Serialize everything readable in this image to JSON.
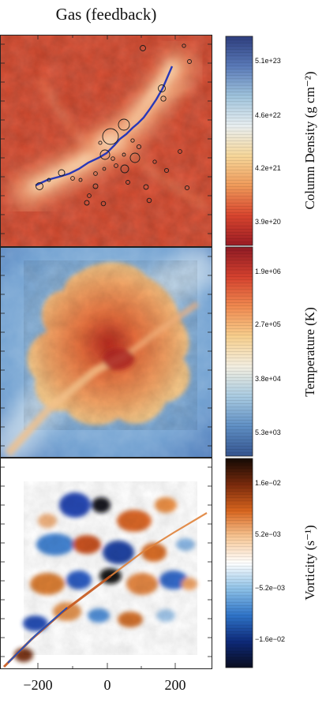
{
  "figure": {
    "title": "Gas (feedback)",
    "x_tick_labels": [
      "−200",
      "0",
      "200"
    ]
  },
  "panels": [
    {
      "quantity": "column-density",
      "colorbar_label": "Column Density (g cm⁻²)",
      "colorbar_ticks": [
        "5.1e+23",
        "4.6e+22",
        "4.2e+21",
        "3.9e+20"
      ],
      "colormap": [
        "#2e3e7e",
        "#5a7ab8",
        "#9fc3dc",
        "#e8eef0",
        "#f6d79a",
        "#ef9a5a",
        "#d8452e",
        "#9b1c24"
      ]
    },
    {
      "quantity": "temperature",
      "colorbar_label": "Temperature (K)",
      "colorbar_ticks": [
        "1.9e+06",
        "2.7e+05",
        "3.8e+04",
        "5.3e+03"
      ],
      "colormap": [
        "#8e1a24",
        "#d4412e",
        "#f08a50",
        "#f7cf8e",
        "#f3eee0",
        "#a9cbe1",
        "#5f8fc4",
        "#34548f"
      ]
    },
    {
      "quantity": "vorticity",
      "colorbar_label": "Vorticity (s⁻¹)",
      "colorbar_ticks": [
        "1.6e−02",
        "5.2e−03",
        "−5.2e−03",
        "−1.6e−02"
      ],
      "colormap": [
        "#140a05",
        "#7a2a0c",
        "#d8651e",
        "#f7c694",
        "#ffffff",
        "#8cc0e6",
        "#2f74c8",
        "#0e2a7a",
        "#0a0d1f"
      ]
    }
  ]
}
